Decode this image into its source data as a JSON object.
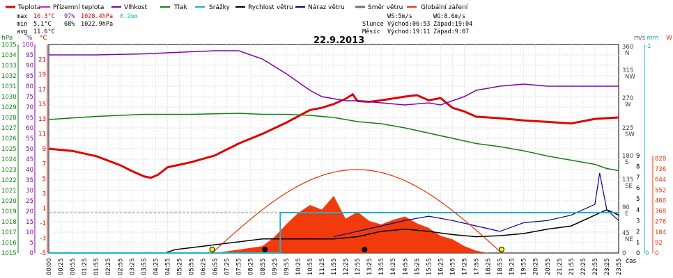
{
  "legend": [
    {
      "label": "Teplota",
      "color": "#e00000"
    },
    {
      "label": "Přízemní teplota",
      "color": "#d020d0"
    },
    {
      "label": "Vlhkost",
      "color": "#8000b0"
    },
    {
      "label": "Tlak",
      "color": "#108010"
    },
    {
      "label": "Srážky",
      "color": "#20b0c8"
    },
    {
      "label": "Rychlost větru",
      "color": "#000000"
    },
    {
      "label": "Náraz větru",
      "color": "#000090"
    },
    {
      "label": "Směr větru",
      "color": "#707070"
    },
    {
      "label": "Globální záření",
      "color": "#f03000"
    }
  ],
  "stats": {
    "max_label": "max",
    "max_temp": "16.3°C",
    "max_hum": "97%",
    "max_press": "1028.4hPa",
    "max_rain": "0.2mm",
    "min_label": "min",
    "min_temp": "5.1°C",
    "min_hum": "68%",
    "min_press": "1022.9hPa",
    "avg_label": "avg",
    "avg_temp": "11.6°C"
  },
  "info": {
    "ws": "WS:5m/s",
    "wg": "WG:8.6m/s",
    "sun_label": "Slunce",
    "sunrise": "Východ:06:53",
    "sunset": "Západ:19:04",
    "moon_label": "Měsíc",
    "moonrise": "Východ:19:11",
    "moonset": "Západ:9:07"
  },
  "chart_data": {
    "type": "line",
    "title": "22.9.2013",
    "xlabel": "čas",
    "x_ticks": [
      "00:00",
      "00:25",
      "00:55",
      "01:25",
      "01:55",
      "02:25",
      "02:55",
      "03:25",
      "03:55",
      "04:25",
      "04:55",
      "05:25",
      "05:55",
      "06:25",
      "06:55",
      "07:25",
      "07:55",
      "08:25",
      "08:55",
      "09:25",
      "09:55",
      "10:25",
      "10:55",
      "11:25",
      "11:55",
      "12:25",
      "12:55",
      "13:25",
      "13:55",
      "14:25",
      "14:55",
      "15:25",
      "15:55",
      "16:25",
      "16:55",
      "17:25",
      "17:55",
      "18:25",
      "18:55",
      "19:25",
      "19:55",
      "20:25",
      "20:55",
      "21:25",
      "21:55",
      "22:25",
      "22:55",
      "23:25",
      "23:55"
    ],
    "axes": {
      "pressure": {
        "label": "hPa",
        "color": "#108010",
        "ticks": [
          "1015",
          "1016",
          "1017",
          "1018",
          "1019",
          "1020",
          "1021",
          "1022",
          "1023",
          "1024",
          "1025",
          "1026",
          "1027",
          "1028",
          "1029",
          "1030",
          "1031",
          "1032",
          "1033",
          "1034",
          "1035"
        ]
      },
      "humidity": {
        "label": "%",
        "color": "#8000b0",
        "ticks": [
          "0",
          "5",
          "10",
          "15",
          "20",
          "25",
          "30",
          "35",
          "40",
          "45",
          "50",
          "55",
          "60",
          "65",
          "70",
          "75",
          "80",
          "85",
          "90",
          "95",
          "100"
        ]
      },
      "temperature": {
        "label": "°C",
        "color": "#e00000",
        "ticks": [
          "-5",
          "-3",
          "-1",
          "1",
          "3",
          "5",
          "7",
          "9",
          "11",
          "13",
          "15",
          "17",
          "19",
          "21"
        ]
      },
      "wind_dir": {
        "label": "m/s",
        "color": "#606060",
        "ticks": [
          "360 N",
          "315 NW",
          "270 W",
          "225 SW",
          "180 S",
          "135 SE",
          "90 E",
          "45 NE",
          "0"
        ]
      },
      "wind_speed": {
        "ticks": [
          "0",
          "1",
          "2",
          "3",
          "4",
          "5",
          "6",
          "7",
          "8",
          "9"
        ]
      },
      "rain": {
        "label": "mm",
        "color": "#20b0c8",
        "ticks": [
          "-1",
          "0"
        ]
      },
      "radiation": {
        "label": "W",
        "color": "#f03000",
        "ticks": [
          "0",
          "92",
          "184",
          "276",
          "368",
          "460",
          "552",
          "644",
          "736",
          "828"
        ]
      }
    },
    "series": [
      {
        "name": "Teplota",
        "unit": "°C",
        "x_hours": [
          0,
          1,
          2,
          3,
          3.5,
          4,
          4.3,
          4.6,
          5,
          6,
          7,
          8,
          9,
          10,
          11,
          11.5,
          12,
          12.5,
          12.8,
          13,
          13.5,
          14,
          15,
          15.5,
          16,
          16.5,
          17,
          17.5,
          18,
          19,
          20,
          21,
          22,
          23,
          24
        ],
        "values": [
          9,
          8.7,
          8,
          6.8,
          6,
          5.3,
          5.1,
          5.5,
          6.5,
          7.2,
          8.1,
          9.7,
          11,
          12.5,
          14.2,
          14.5,
          15,
          15.7,
          16.3,
          15.4,
          15.3,
          15.5,
          16,
          16.2,
          15.5,
          15.8,
          14.5,
          14,
          13.3,
          13.1,
          12.8,
          12.6,
          12.4,
          13,
          13.2
        ]
      },
      {
        "name": "Tlak",
        "unit": "hPa",
        "x_hours": [
          0,
          2,
          4,
          6,
          8,
          9,
          10,
          11,
          12,
          13,
          14,
          15,
          16,
          17,
          18,
          19,
          20,
          21,
          22,
          23,
          23.5,
          24
        ],
        "values": [
          1027.8,
          1028.1,
          1028.3,
          1028.3,
          1028.4,
          1028.3,
          1028.3,
          1028.2,
          1028.0,
          1027.6,
          1027.4,
          1027.0,
          1026.5,
          1026.0,
          1025.5,
          1025.2,
          1024.8,
          1024.3,
          1023.9,
          1023.5,
          1023.1,
          1022.9
        ]
      },
      {
        "name": "Vlhkost",
        "unit": "%",
        "x_hours": [
          0,
          2,
          4,
          5,
          6,
          7,
          8,
          9,
          10,
          10.5,
          11,
          11.5,
          12,
          12.5,
          13,
          14,
          15,
          16,
          16.5,
          17,
          17.5,
          18,
          19,
          20,
          21,
          22,
          23,
          24
        ],
        "values": [
          95,
          95,
          95.5,
          96,
          96.5,
          97,
          97,
          93,
          86,
          82,
          78,
          75,
          74,
          73,
          73,
          72,
          71,
          72,
          71,
          73,
          75,
          78,
          80,
          81,
          80,
          80,
          80,
          80
        ]
      },
      {
        "name": "Globální záření",
        "unit": "W/m²",
        "x_hours": [
          7,
          8,
          9,
          9.5,
          10,
          10.5,
          11,
          11.5,
          12,
          12.5,
          13,
          13.5,
          14,
          14.5,
          15,
          15.5,
          16,
          16.5,
          17,
          17.5,
          18,
          18.5
        ],
        "values": [
          0,
          30,
          60,
          140,
          250,
          350,
          420,
          380,
          500,
          300,
          360,
          280,
          250,
          290,
          320,
          260,
          220,
          150,
          120,
          60,
          20,
          0
        ]
      },
      {
        "name": "Rychlost větru",
        "unit": "m/s",
        "x_hours": [
          0,
          4.9,
          5.3,
          9,
          12,
          13,
          14,
          15,
          16,
          17,
          18,
          19,
          20,
          21,
          22,
          23,
          23.5,
          24
        ],
        "values": [
          0,
          0,
          0.3,
          1.3,
          1.3,
          1.5,
          2,
          2.2,
          2,
          1.7,
          1.5,
          1.6,
          1.8,
          2.2,
          2.5,
          3.5,
          4,
          3.5
        ]
      },
      {
        "name": "Náraz větru",
        "unit": "m/s",
        "x_hours": [
          12,
          13,
          14,
          15,
          16,
          17,
          18,
          19,
          20,
          21,
          22,
          23,
          23.2,
          23.5,
          24
        ],
        "values": [
          1.5,
          2,
          2.5,
          3,
          3.4,
          3,
          2.5,
          2,
          2.8,
          3,
          3.5,
          4.5,
          7.4,
          4,
          3
        ]
      },
      {
        "name": "Srážky",
        "unit": "mm",
        "x_hours": [
          0,
          9.75,
          10,
          24
        ],
        "values": [
          0,
          0,
          0.2,
          0.2
        ]
      }
    ],
    "grid": true
  }
}
